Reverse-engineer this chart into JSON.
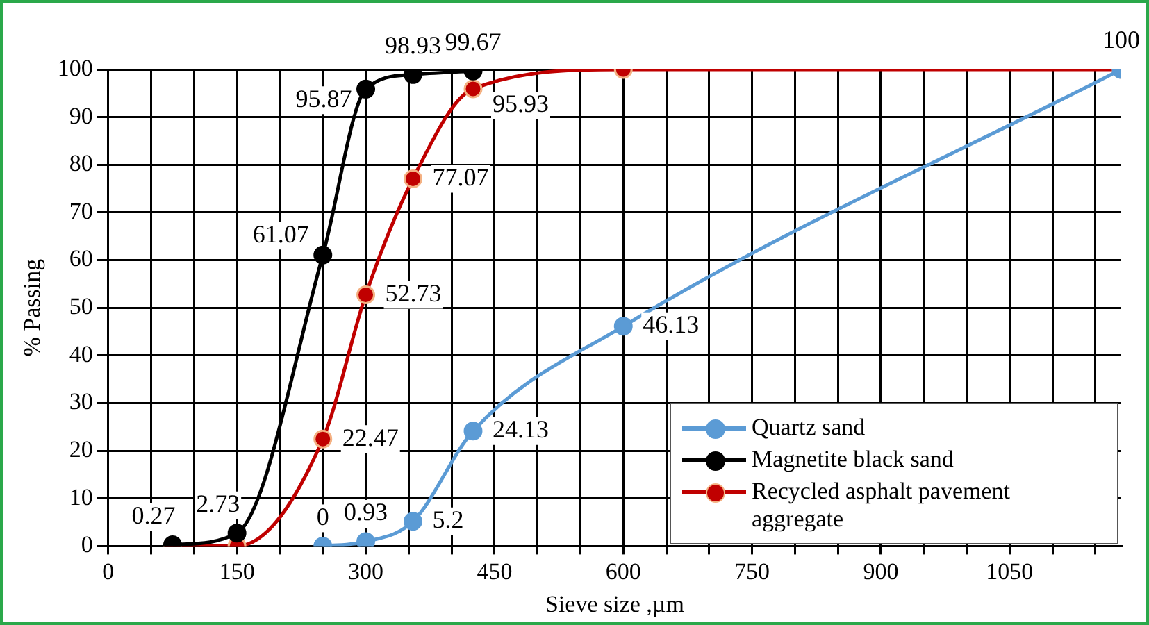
{
  "chart_data": {
    "type": "line",
    "xlabel": "Sieve size ,µm",
    "ylabel": "% Passing",
    "xlim": [
      0,
      1180
    ],
    "ylim": [
      0,
      100
    ],
    "xticks": [
      0,
      {
        "value": 50,
        "label": null
      },
      {
        "value": 100,
        "label": null
      },
      150,
      {
        "value": 200,
        "label": null
      },
      {
        "value": 250,
        "label": null
      },
      300,
      {
        "value": 350,
        "label": null
      },
      {
        "value": 400,
        "label": null
      },
      450,
      {
        "value": 500,
        "label": null
      },
      {
        "value": 550,
        "label": null
      },
      600,
      {
        "value": 650,
        "label": null
      },
      {
        "value": 700,
        "label": null
      },
      750,
      {
        "value": 800,
        "label": null
      },
      {
        "value": 850,
        "label": null
      },
      900,
      {
        "value": 950,
        "label": null
      },
      {
        "value": 1000,
        "label": null
      },
      1050,
      {
        "value": 1100,
        "label": null
      },
      {
        "value": 1150,
        "label": null
      }
    ],
    "yticks": [
      0,
      10,
      20,
      30,
      40,
      50,
      60,
      70,
      80,
      90,
      100
    ],
    "grid": true,
    "legend": "bottom right",
    "marker": "circle",
    "line_style": "solid",
    "series": [
      {
        "name": "Quartz sand",
        "color": "#5b9bd5",
        "x": [
          250,
          300,
          355,
          425,
          600,
          1180
        ],
        "values": [
          0,
          0.93,
          5.2,
          24.13,
          46.13,
          100
        ],
        "value_labels": [
          "0",
          "0.93",
          "5.2",
          "24.13",
          "46.13",
          "100"
        ]
      },
      {
        "name": "Magnetite black sand",
        "color": "#000000",
        "x": [
          75,
          150,
          250,
          300,
          355,
          425
        ],
        "values": [
          0.27,
          2.73,
          61.07,
          95.87,
          98.93,
          99.67
        ],
        "value_labels": [
          "0.27",
          "2.73",
          "61.07",
          "95.87",
          "98.93",
          "99.67"
        ]
      },
      {
        "name": "Recycled asphalt pavement aggregate",
        "color": "#c00000",
        "x": [
          75,
          150,
          250,
          300,
          355,
          425,
          600,
          1180
        ],
        "values": [
          0,
          0,
          22.47,
          52.73,
          77.07,
          95.93,
          100,
          100
        ],
        "value_labels": [
          null,
          null,
          "22.47",
          "52.73",
          "77.07",
          "95.93",
          null,
          null
        ]
      }
    ]
  }
}
